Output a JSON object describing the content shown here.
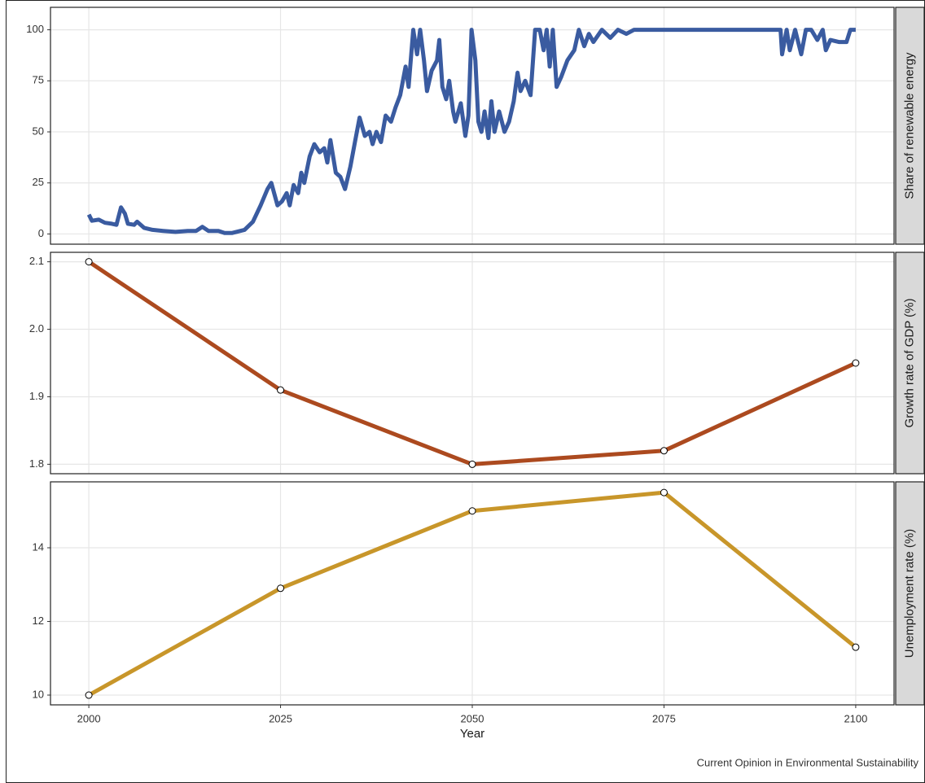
{
  "caption": "Current Opinion in Environmental Sustainability",
  "chart_data": [
    {
      "type": "line",
      "y_label": "Share of renewable energy",
      "color": "#3a5ba0",
      "markers": false,
      "xlim": [
        1995,
        2105
      ],
      "ylim": [
        -5,
        111
      ],
      "yticks": [
        0,
        25,
        50,
        75,
        100
      ],
      "grid": true,
      "x": [
        2000,
        2000.4,
        2001.3,
        2002.1,
        2003,
        2003.6,
        2004.2,
        2004.7,
        2005.1,
        2005.9,
        2006.3,
        2007.2,
        2008.3,
        2009.7,
        2011.3,
        2012.9,
        2014,
        2014.8,
        2015.6,
        2016.9,
        2017.7,
        2018.7,
        2020.3,
        2021.4,
        2022.4,
        2023.3,
        2023.8,
        2024.6,
        2025.2,
        2025.8,
        2026.2,
        2026.7,
        2027.3,
        2027.7,
        2028.1,
        2028.8,
        2029.4,
        2030.1,
        2030.7,
        2031.1,
        2031.5,
        2032.2,
        2032.8,
        2033.4,
        2034.1,
        2034.7,
        2035.3,
        2036,
        2036.6,
        2037,
        2037.5,
        2038.1,
        2038.7,
        2039.4,
        2040,
        2040.6,
        2041.3,
        2041.7,
        2042.3,
        2042.8,
        2043.2,
        2043.7,
        2044.1,
        2044.7,
        2045.4,
        2045.7,
        2046.1,
        2046.6,
        2047,
        2047.5,
        2047.8,
        2048.5,
        2049.1,
        2049.5,
        2049.9,
        2050.4,
        2050.8,
        2051.2,
        2051.6,
        2052.1,
        2052.5,
        2052.9,
        2053.5,
        2054.2,
        2054.8,
        2055.4,
        2055.9,
        2056.3,
        2056.9,
        2057.6,
        2058.2,
        2058.8,
        2059.3,
        2059.7,
        2060.1,
        2060.5,
        2061,
        2061.6,
        2062.4,
        2063.3,
        2063.9,
        2064.6,
        2065.2,
        2065.8,
        2066.9,
        2068,
        2069,
        2070.1,
        2071.1,
        2072.2,
        2075,
        2080,
        2085,
        2090.2,
        2090.4,
        2091,
        2091.4,
        2092.1,
        2092.9,
        2093.5,
        2094.2,
        2095,
        2095.7,
        2096.1,
        2096.7,
        2097.8,
        2098.8,
        2099.3,
        2100
      ],
      "values": [
        9.5,
        6.5,
        7,
        5.5,
        5,
        4.5,
        13,
        10,
        5,
        4.5,
        6,
        3,
        2,
        1.5,
        1,
        1.5,
        1.5,
        3.5,
        1.5,
        1.5,
        0.5,
        0.5,
        2,
        6,
        14,
        22,
        25,
        14,
        16,
        20,
        14,
        24,
        20,
        30,
        25,
        38,
        44,
        40,
        42,
        35,
        46,
        30,
        28,
        22,
        33,
        45,
        57,
        48,
        50,
        44,
        50,
        45,
        58,
        55,
        62,
        68,
        82,
        72,
        100,
        88,
        100,
        85,
        70,
        80,
        85,
        95,
        72,
        66,
        75,
        60,
        55,
        64,
        48,
        58,
        100,
        85,
        55,
        50,
        60,
        47,
        65,
        50,
        60,
        50,
        55,
        65,
        79,
        70,
        75,
        68,
        100,
        100,
        90,
        100,
        82,
        100,
        72,
        77,
        85,
        90,
        100,
        92,
        98,
        94,
        100,
        96,
        100,
        98,
        100,
        100,
        100,
        100,
        100,
        100,
        88,
        100,
        90,
        100,
        88,
        100,
        100,
        95,
        100,
        90,
        95,
        94,
        94,
        100,
        100
      ]
    },
    {
      "type": "line",
      "y_label": "Growth rate of GDP (%)",
      "color": "#ac4a1f",
      "markers": true,
      "xlim": [
        1995,
        2105
      ],
      "ylim": [
        1.786,
        2.114
      ],
      "yticks": [
        1.8,
        1.9,
        {
          "value": 2,
          "label": "2.0"
        },
        2.1
      ],
      "grid": true,
      "x": [
        2000,
        2025,
        2050,
        2075,
        2100
      ],
      "values": [
        2.1,
        1.91,
        1.8,
        1.82,
        1.95
      ]
    },
    {
      "type": "line",
      "y_label": "Unemployment rate (%)",
      "color": "#c8962a",
      "markers": true,
      "xlim": [
        1995,
        2105
      ],
      "ylim": [
        9.735,
        15.79
      ],
      "yticks": [
        10,
        12,
        14
      ],
      "grid": true,
      "x": [
        2000,
        2025,
        2050,
        2075,
        2100
      ],
      "values": [
        10,
        12.9,
        15,
        15.5,
        11.3
      ],
      "xticks": [
        2000,
        2025,
        2050,
        2075,
        2100
      ],
      "x_label": "Year"
    }
  ]
}
